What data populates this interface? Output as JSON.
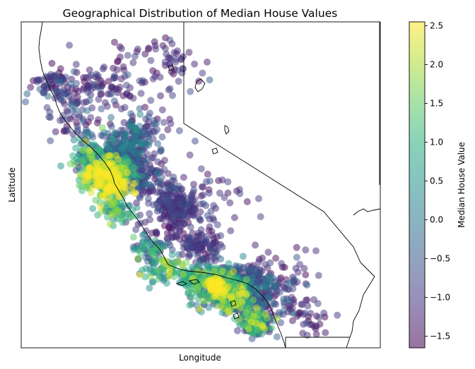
{
  "chart_data": {
    "type": "scatter",
    "title": "Geographical Distribution of Median House Values",
    "xlabel": "Longitude",
    "ylabel": "Latitude",
    "x_ticks_visible": false,
    "y_ticks_visible": false,
    "grid": false,
    "colormap": "viridis",
    "point_alpha": 0.5,
    "colorbar": {
      "label": "Median House Value",
      "range": [
        -1.65,
        2.55
      ],
      "ticks": [
        -1.5,
        -1.0,
        -0.5,
        0.0,
        0.5,
        1.0,
        1.5,
        2.0,
        2.5
      ],
      "tick_labels": [
        "−1.5",
        "−1.0",
        "−0.5",
        "0.0",
        "0.5",
        "1.0",
        "1.5",
        "2.0",
        "2.5"
      ],
      "placement": "right"
    },
    "xlim": [
      -125.0,
      -113.0
    ],
    "ylim": [
      32.0,
      42.8
    ],
    "clusters": [
      {
        "lon": -122.3,
        "lat": 37.8,
        "spread": 0.35,
        "value": 1.6,
        "vspread": 0.8,
        "count": 220
      },
      {
        "lon": -122.0,
        "lat": 37.4,
        "spread": 0.3,
        "value": 1.9,
        "vspread": 0.7,
        "count": 160
      },
      {
        "lon": -121.9,
        "lat": 37.8,
        "spread": 0.35,
        "value": 0.7,
        "vspread": 0.6,
        "count": 140
      },
      {
        "lon": -118.3,
        "lat": 34.05,
        "spread": 0.45,
        "value": 0.3,
        "vspread": 1.0,
        "count": 340
      },
      {
        "lon": -118.5,
        "lat": 34.05,
        "spread": 0.15,
        "value": 2.3,
        "vspread": 0.3,
        "count": 90
      },
      {
        "lon": -117.9,
        "lat": 33.7,
        "spread": 0.3,
        "value": 0.8,
        "vspread": 0.9,
        "count": 160
      },
      {
        "lon": -117.6,
        "lat": 34.1,
        "spread": 0.45,
        "value": -0.7,
        "vspread": 0.5,
        "count": 200
      },
      {
        "lon": -117.2,
        "lat": 32.85,
        "spread": 0.25,
        "value": 0.4,
        "vspread": 0.9,
        "count": 150
      },
      {
        "lon": -117.0,
        "lat": 32.75,
        "spread": 0.15,
        "value": -0.7,
        "vspread": 0.4,
        "count": 60
      },
      {
        "lon": -121.5,
        "lat": 38.6,
        "spread": 0.45,
        "value": -0.5,
        "vspread": 0.5,
        "count": 170
      },
      {
        "lon": -121.3,
        "lat": 38.1,
        "spread": 0.4,
        "value": -0.9,
        "vspread": 0.4,
        "count": 90
      },
      {
        "lon": -120.8,
        "lat": 37.5,
        "spread": 0.4,
        "value": -1.0,
        "vspread": 0.3,
        "count": 80
      },
      {
        "lon": -119.8,
        "lat": 36.75,
        "spread": 0.35,
        "value": -1.1,
        "vspread": 0.3,
        "count": 120
      },
      {
        "lon": -119.0,
        "lat": 35.35,
        "spread": 0.35,
        "value": -1.1,
        "vspread": 0.3,
        "count": 100
      },
      {
        "lon": -120.1,
        "lat": 36.2,
        "spread": 0.6,
        "value": -1.2,
        "vspread": 0.3,
        "count": 90
      },
      {
        "lon": -120.2,
        "lat": 34.5,
        "spread": 0.35,
        "value": 0.9,
        "vspread": 0.8,
        "count": 70
      },
      {
        "lon": -119.2,
        "lat": 34.25,
        "spread": 0.3,
        "value": 0.6,
        "vspread": 0.7,
        "count": 80
      },
      {
        "lon": -120.7,
        "lat": 35.3,
        "spread": 0.35,
        "value": 0.2,
        "vspread": 0.7,
        "count": 60
      },
      {
        "lon": -121.8,
        "lat": 36.6,
        "spread": 0.3,
        "value": 0.7,
        "vspread": 0.8,
        "count": 70
      },
      {
        "lon": -122.7,
        "lat": 38.4,
        "spread": 0.35,
        "value": 0.3,
        "vspread": 0.7,
        "count": 80
      },
      {
        "lon": -122.4,
        "lat": 40.6,
        "spread": 0.5,
        "value": -1.2,
        "vspread": 0.3,
        "count": 80
      },
      {
        "lon": -124.0,
        "lat": 40.7,
        "spread": 0.4,
        "value": -1.0,
        "vspread": 0.4,
        "count": 70
      },
      {
        "lon": -123.2,
        "lat": 39.6,
        "spread": 0.5,
        "value": -1.0,
        "vspread": 0.4,
        "count": 60
      },
      {
        "lon": -121.0,
        "lat": 39.3,
        "spread": 0.5,
        "value": -0.7,
        "vspread": 0.6,
        "count": 70
      },
      {
        "lon": -116.8,
        "lat": 33.7,
        "spread": 0.55,
        "value": -0.9,
        "vspread": 0.5,
        "count": 120
      },
      {
        "lon": -116.3,
        "lat": 34.4,
        "spread": 0.6,
        "value": -1.2,
        "vspread": 0.3,
        "count": 40
      },
      {
        "lon": -115.5,
        "lat": 33.0,
        "spread": 0.45,
        "value": -1.2,
        "vspread": 0.3,
        "count": 40
      },
      {
        "lon": -118.9,
        "lat": 37.0,
        "spread": 0.7,
        "value": -1.1,
        "vspread": 0.3,
        "count": 60
      },
      {
        "lon": -120.5,
        "lat": 41.3,
        "spread": 0.8,
        "value": -1.2,
        "vspread": 0.3,
        "count": 70
      }
    ]
  }
}
